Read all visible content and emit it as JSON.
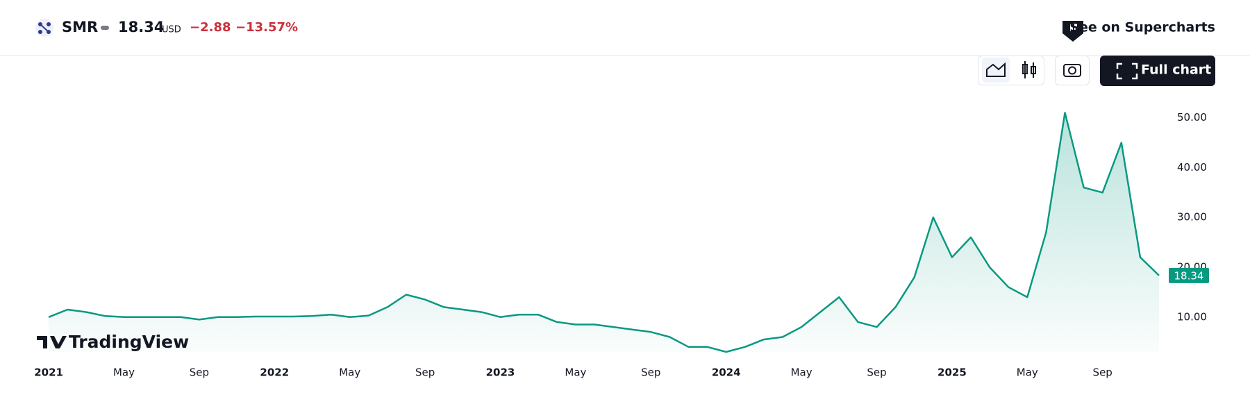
{
  "header": {
    "symbol": "SMR",
    "currency": "USD",
    "change": "−2.88",
    "change_percent": "−13.57%",
    "link": "See on Supercharts"
  },
  "toolbar": {
    "full_chart": "Full chart"
  },
  "branding": "TradingView",
  "chart_data": {
    "type": "area",
    "x": [
      "2021-01",
      "2021-02",
      "2021-03",
      "2021-04",
      "2021-05",
      "2021-06",
      "2021-07",
      "2021-08",
      "2021-09",
      "2021-10",
      "2021-11",
      "2021-12",
      "2022-01",
      "2022-02",
      "2022-03",
      "2022-04",
      "2022-05",
      "2022-06",
      "2022-07",
      "2022-08",
      "2022-09",
      "2022-10",
      "2022-11",
      "2022-12",
      "2023-01",
      "2023-02",
      "2023-03",
      "2023-04",
      "2023-05",
      "2023-06",
      "2023-07",
      "2023-08",
      "2023-09",
      "2023-10",
      "2023-11",
      "2023-12",
      "2024-01",
      "2024-02",
      "2024-03",
      "2024-04",
      "2024-05",
      "2024-06",
      "2024-07",
      "2024-08",
      "2024-09",
      "2024-10",
      "2024-11",
      "2024-12",
      "2025-01",
      "2025-02",
      "2025-03",
      "2025-04",
      "2025-05",
      "2025-06",
      "2025-07",
      "2025-08",
      "2025-09",
      "2025-10",
      "2025-11",
      "2025-12"
    ],
    "series": [
      {
        "name": "SMR",
        "color": "#089981",
        "values": [
          10,
          11.5,
          11,
          10.2,
          10,
          10,
          10,
          10,
          9.5,
          10,
          10,
          10.1,
          10.1,
          10.1,
          10.2,
          10.5,
          10,
          10.3,
          12,
          14.5,
          13.5,
          12,
          11.5,
          11,
          10,
          10.5,
          10.5,
          9,
          8.5,
          8.5,
          8,
          7.5,
          7,
          6,
          4,
          4,
          3,
          4,
          5.5,
          6,
          8,
          11,
          14,
          9,
          8,
          12,
          18,
          30,
          22,
          26,
          20,
          16,
          14,
          27,
          51,
          36,
          35,
          45,
          22,
          18.34
        ]
      }
    ],
    "xlim": [
      "2020-12",
      "2025-12"
    ],
    "xticks": [
      {
        "value": "2021-01",
        "label": "2021"
      },
      {
        "value": "2021-05",
        "label": "May"
      },
      {
        "value": "2021-09",
        "label": "Sep"
      },
      {
        "value": "2022-01",
        "label": "2022"
      },
      {
        "value": "2022-05",
        "label": "May"
      },
      {
        "value": "2022-09",
        "label": "Sep"
      },
      {
        "value": "2023-01",
        "label": "2023"
      },
      {
        "value": "2023-05",
        "label": "May"
      },
      {
        "value": "2023-09",
        "label": "Sep"
      },
      {
        "value": "2024-01",
        "label": "2024"
      },
      {
        "value": "2024-05",
        "label": "May"
      },
      {
        "value": "2024-09",
        "label": "Sep"
      },
      {
        "value": "2025-01",
        "label": "2025"
      },
      {
        "value": "2025-05",
        "label": "May"
      },
      {
        "value": "2025-09",
        "label": "Sep"
      }
    ],
    "ylim": [
      3,
      54
    ],
    "yticks": [
      {
        "value": 10,
        "label": "10.00"
      },
      {
        "value": 20,
        "label": "20.00"
      },
      {
        "value": 30,
        "label": "30.00"
      },
      {
        "value": 40,
        "label": "40.00"
      },
      {
        "value": 50,
        "label": "50.00"
      }
    ]
  }
}
